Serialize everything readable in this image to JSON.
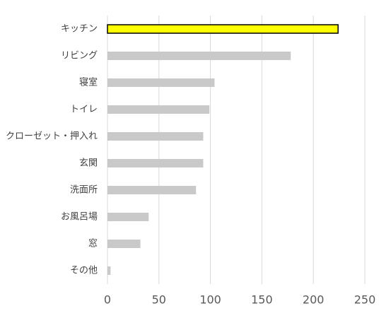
{
  "chart_data": {
    "type": "barh",
    "categories": [
      "キッチン",
      "リビング",
      "寝室",
      "トイレ",
      "クローゼット・押入れ",
      "玄関",
      "洗面所",
      "お風呂場",
      "窓",
      "その他"
    ],
    "values": [
      224,
      178,
      104,
      99,
      93,
      93,
      86,
      40,
      32,
      3
    ],
    "colors": [
      "#ffff00",
      "#c9c9c9",
      "#c9c9c9",
      "#c9c9c9",
      "#c9c9c9",
      "#c9c9c9",
      "#c9c9c9",
      "#c9c9c9",
      "#c9c9c9",
      "#c9c9c9"
    ],
    "xlim": [
      0,
      250
    ],
    "xticks": [
      0,
      50,
      100,
      150,
      200,
      250
    ],
    "grid": true
  }
}
